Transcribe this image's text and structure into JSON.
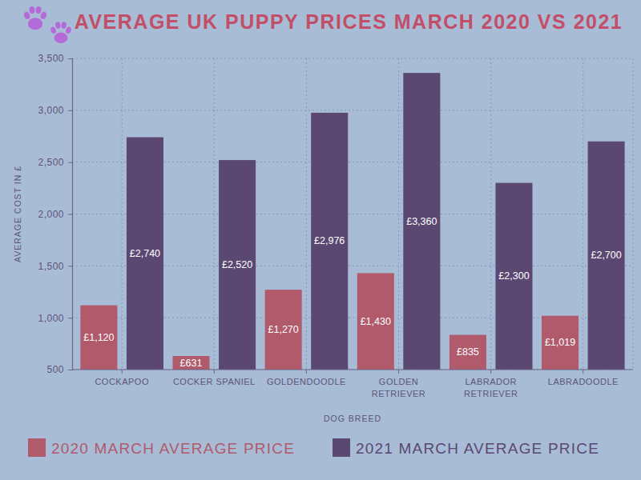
{
  "chart_data": {
    "type": "bar",
    "title": "AVERAGE UK PUPPY PRICES MARCH 2020 VS 2021",
    "x_label": "DOG BREED",
    "y_label": "AVERAGE COST IN £",
    "categories": [
      "COCKAPOO",
      "COCKER SPANIEL",
      "GOLDENDOODLE",
      "GOLDEN RETRIEVER",
      "LABRADOR RETRIEVER",
      "LABRADOODLE"
    ],
    "series": [
      {
        "name": "2020 MARCH AVERAGE PRICE",
        "color": "#b05a6c",
        "values": [
          1120,
          631,
          1270,
          1430,
          835,
          1019
        ],
        "value_labels": [
          "£1,120",
          "£631",
          "£1,270",
          "£1,430",
          "£835",
          "£1,019"
        ]
      },
      {
        "name": "2021 MARCH AVERAGE PRICE",
        "color": "#5b4872",
        "values": [
          2740,
          2520,
          2976,
          3360,
          2300,
          2700
        ],
        "value_labels": [
          "£2,740",
          "£2,520",
          "£2,976",
          "£3,360",
          "£2,300",
          "£2,700"
        ]
      }
    ],
    "ylim": [
      500,
      3500
    ],
    "yticks": [
      500,
      {
        "value": 1000,
        "label": "1,000"
      },
      {
        "value": 1500,
        "label": "1,500"
      },
      {
        "value": 2000,
        "label": "2,000"
      },
      {
        "value": 2500,
        "label": "2,500"
      },
      {
        "value": 3000,
        "label": "3,000"
      },
      {
        "value": 3500,
        "label": "3,500"
      }
    ],
    "grid": true,
    "legend": "bottom",
    "data_labels": true
  }
}
